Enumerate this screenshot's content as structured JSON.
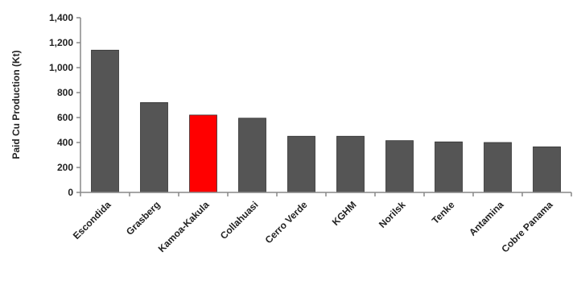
{
  "chart_data": {
    "type": "bar",
    "title": "",
    "xlabel": "",
    "ylabel": "Paid Cu Production (Kt)",
    "ylim": [
      0,
      1400
    ],
    "yticks": [
      0,
      200,
      400,
      600,
      800,
      1000,
      1200,
      1400
    ],
    "ytick_labels": [
      "0",
      "200",
      "400",
      "600",
      "800",
      "1,000",
      "1,200",
      "1,400"
    ],
    "categories": [
      "Escondida",
      "Grasberg",
      "Kamoa-Kakula",
      "Collahuasi",
      "Cerro Verde",
      "KGHM",
      "Norilsk",
      "Tenke",
      "Antamina",
      "Cobre Panama"
    ],
    "values": [
      1140,
      720,
      620,
      595,
      450,
      450,
      415,
      405,
      400,
      365
    ],
    "bar_colors": [
      "#555555",
      "#555555",
      "#ff0000",
      "#555555",
      "#555555",
      "#555555",
      "#555555",
      "#555555",
      "#555555",
      "#555555"
    ],
    "grid": false,
    "legend": "none"
  }
}
